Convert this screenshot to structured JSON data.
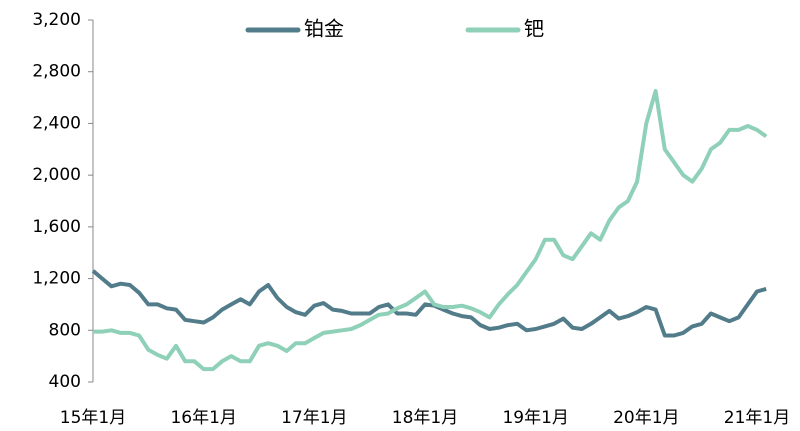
{
  "chart_data": {
    "type": "line",
    "categories": [
      "15年1月",
      null,
      null,
      null,
      null,
      null,
      null,
      null,
      null,
      null,
      null,
      null,
      "16年1月",
      null,
      null,
      null,
      null,
      null,
      null,
      null,
      null,
      null,
      null,
      null,
      "17年1月",
      null,
      null,
      null,
      null,
      null,
      null,
      null,
      null,
      null,
      null,
      null,
      "18年1月",
      null,
      null,
      null,
      null,
      null,
      null,
      null,
      null,
      null,
      null,
      null,
      "19年1月",
      null,
      null,
      null,
      null,
      null,
      null,
      null,
      null,
      null,
      null,
      null,
      "20年1月",
      null,
      null,
      null,
      null,
      null,
      null,
      null,
      null,
      null,
      null,
      null,
      "21年1月",
      null
    ],
    "series": [
      {
        "name": "铂金",
        "color": "#537c8b",
        "values": [
          1260,
          1200,
          1140,
          1160,
          1150,
          1090,
          1000,
          1000,
          970,
          960,
          880,
          870,
          860,
          900,
          960,
          1000,
          1040,
          1000,
          1100,
          1150,
          1050,
          980,
          940,
          920,
          990,
          1010,
          960,
          950,
          930,
          930,
          930,
          980,
          1000,
          930,
          930,
          920,
          1000,
          990,
          960,
          930,
          910,
          900,
          840,
          810,
          820,
          840,
          850,
          800,
          810,
          830,
          850,
          890,
          820,
          810,
          850,
          900,
          950,
          890,
          910,
          940,
          980,
          960,
          760,
          760,
          780,
          830,
          850,
          930,
          900,
          870,
          900,
          1000,
          1100,
          1120
        ]
      },
      {
        "name": "钯",
        "color": "#8fd0b8",
        "values": [
          790,
          790,
          800,
          780,
          780,
          760,
          650,
          610,
          580,
          680,
          560,
          560,
          500,
          500,
          560,
          600,
          560,
          560,
          680,
          700,
          680,
          640,
          700,
          700,
          740,
          780,
          790,
          800,
          810,
          840,
          880,
          920,
          930,
          970,
          1000,
          1050,
          1100,
          1000,
          980,
          980,
          990,
          970,
          940,
          900,
          1000,
          1080,
          1150,
          1250,
          1350,
          1500,
          1500,
          1380,
          1350,
          1450,
          1550,
          1500,
          1650,
          1750,
          1800,
          1950,
          2400,
          2650,
          2200,
          2100,
          2000,
          1950,
          2050,
          2200,
          2250,
          2350,
          2350,
          2380,
          2350,
          2300
        ]
      }
    ],
    "ylim": [
      400,
      3200
    ],
    "yticks": [
      {
        "value": 400,
        "label": "400"
      },
      {
        "value": 800,
        "label": "800"
      },
      {
        "value": 1200,
        "label": "1,200"
      },
      {
        "value": 1600,
        "label": "1,600"
      },
      {
        "value": 2000,
        "label": "2,000"
      },
      {
        "value": 2400,
        "label": "2,400"
      },
      {
        "value": 2800,
        "label": "2,800"
      },
      {
        "value": 3200,
        "label": "3,200"
      }
    ],
    "legend": "top"
  }
}
